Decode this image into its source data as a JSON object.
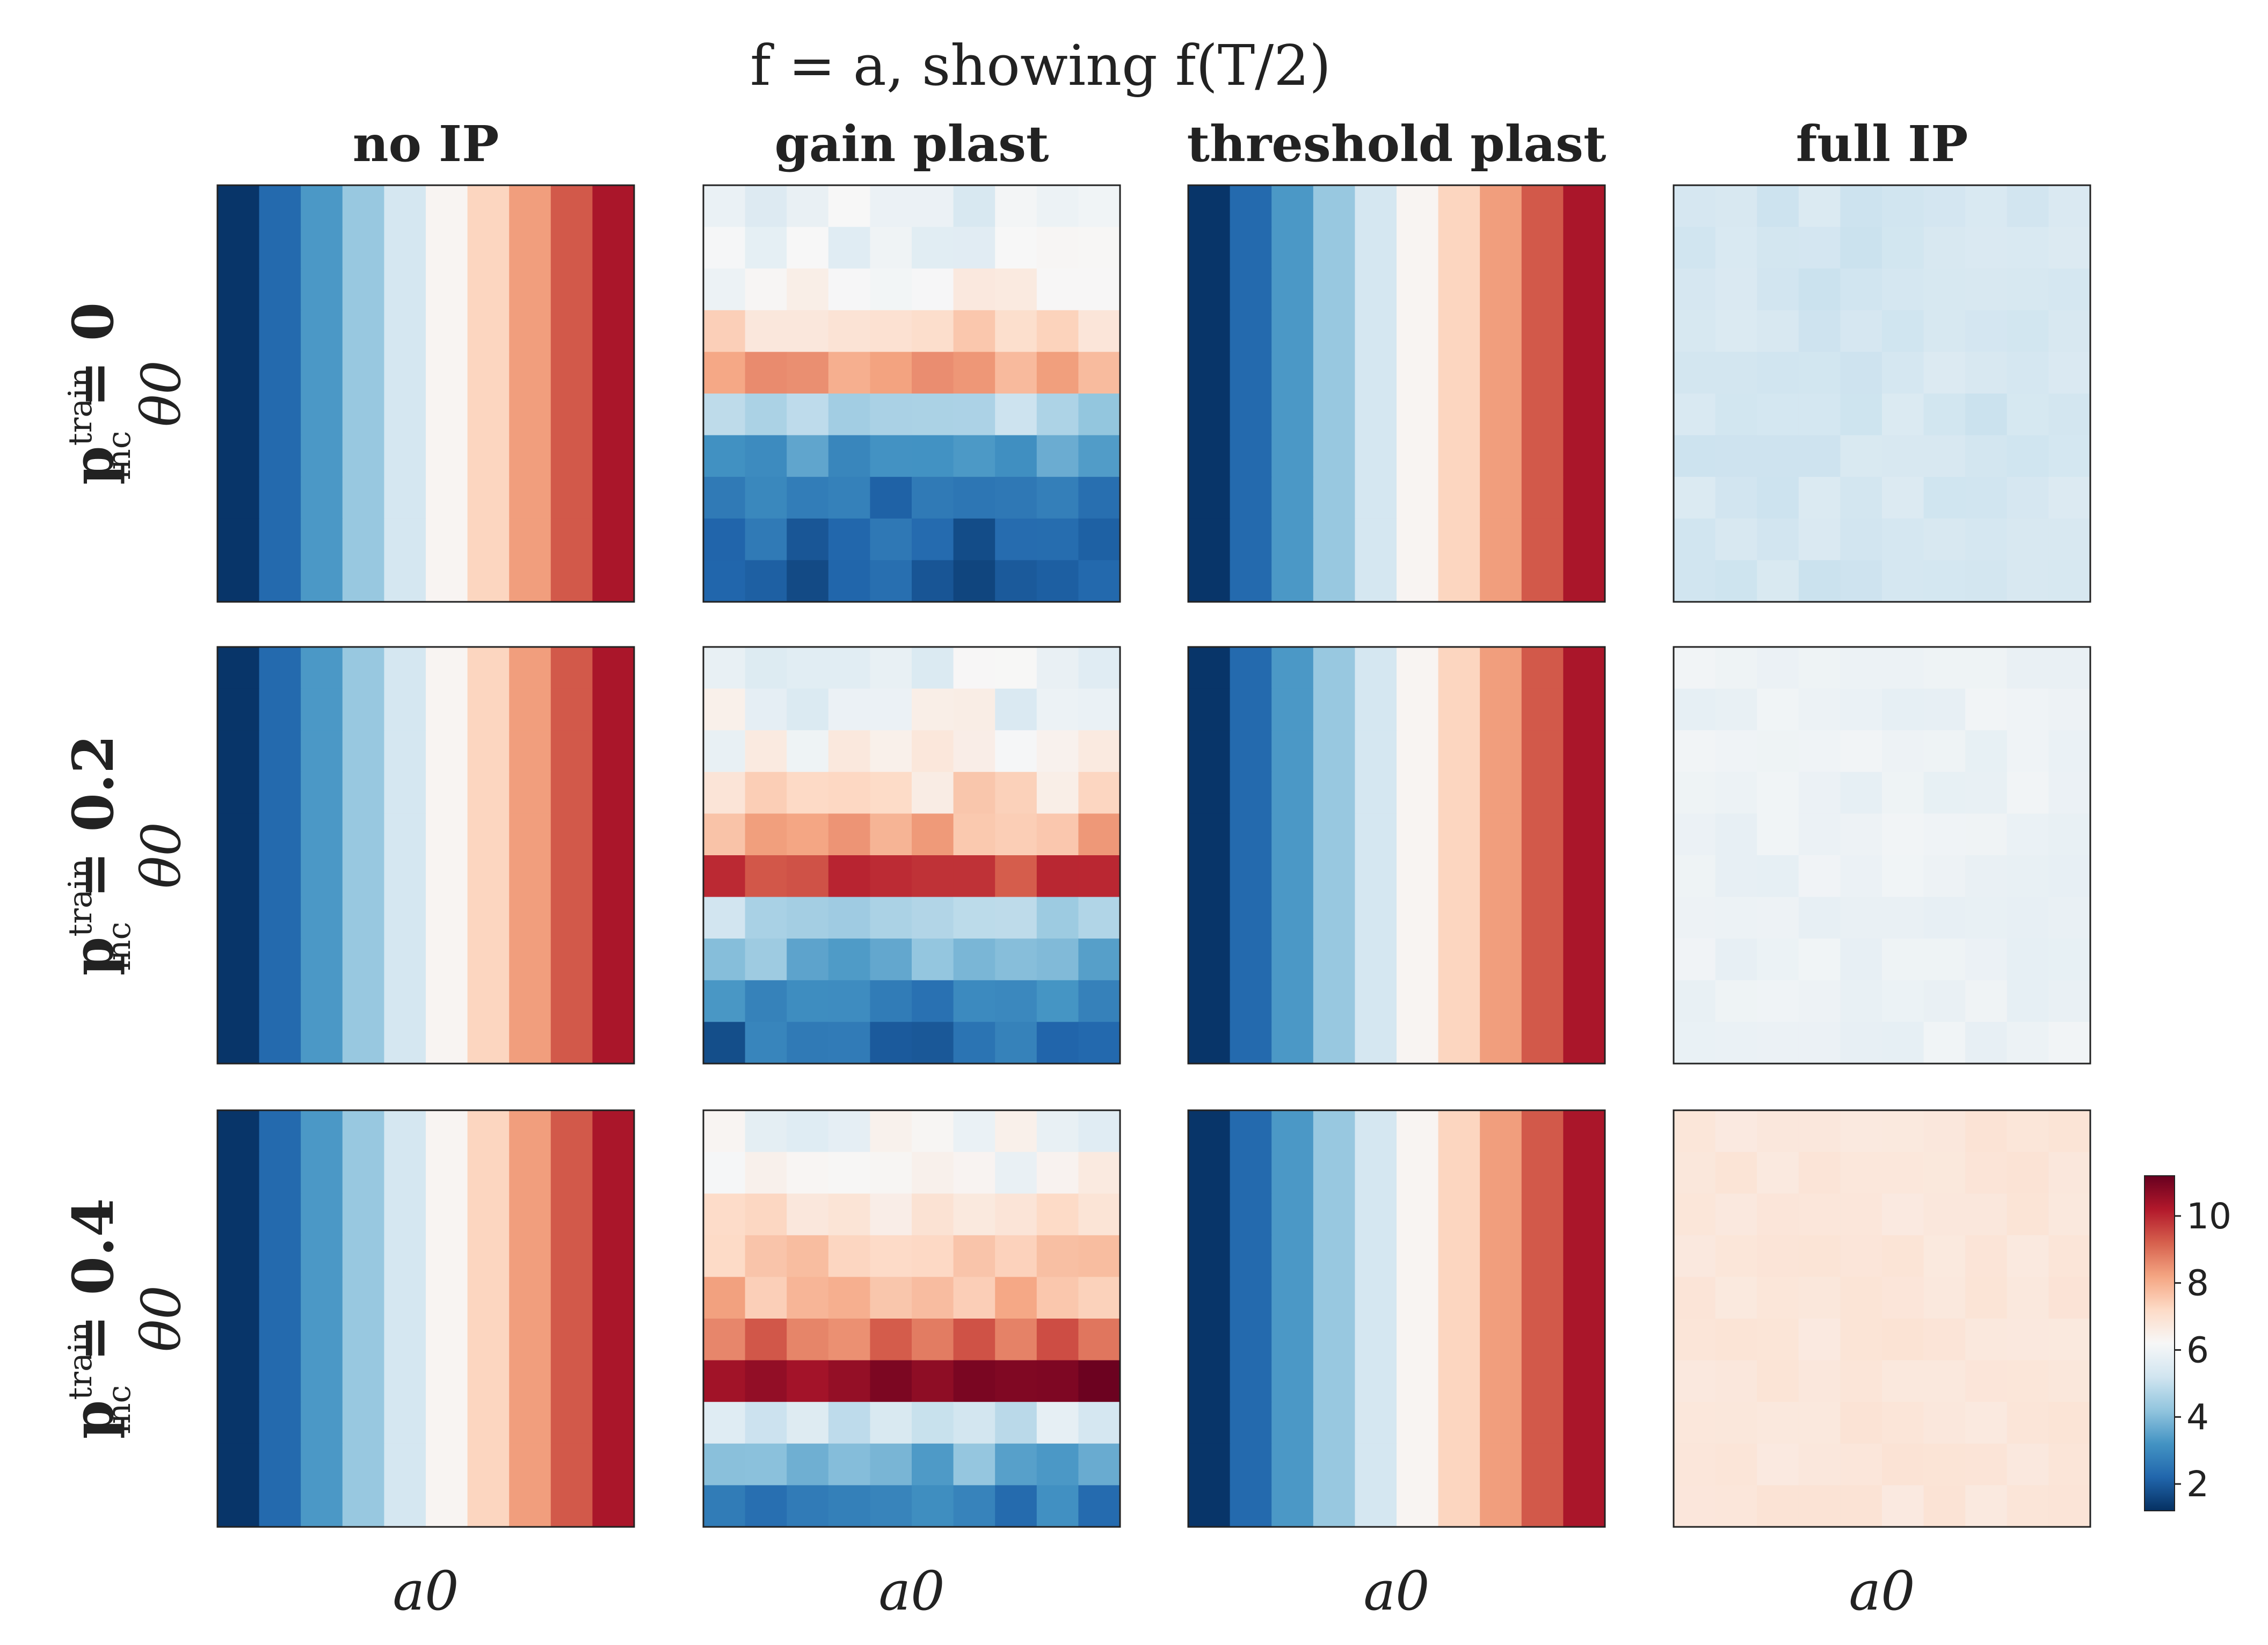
{
  "chart_data": {
    "type": "heatmap",
    "title": "f = a, showing f(T/2)",
    "columns": [
      "no IP",
      "gain plast",
      "threshold plast",
      "full IP"
    ],
    "rows": [
      {
        "label": "p_inc^train = 0",
        "value": "0"
      },
      {
        "label": "p_inc^train = 0.2",
        "value": "0.2"
      },
      {
        "label": "p_inc^train = 0.4",
        "value": "0.4"
      }
    ],
    "row_label_prefix": "p",
    "row_label_sub": "inc",
    "row_label_sup": "train",
    "xlabel": "a0",
    "ylabel": "θ0",
    "grid_size": [
      10,
      10
    ],
    "colormap": "RdBu_r",
    "vmin": 1.2,
    "vmax": 11.2,
    "colorbar_ticks": [
      2,
      4,
      6,
      8,
      10
    ],
    "panels": [
      [
        {
          "kind": "vertical",
          "values": [
            1.3,
            2.3,
            3.3,
            4.3,
            5.3,
            6.3,
            7.3,
            8.3,
            9.3,
            10.3
          ]
        },
        {
          "kind": "horizontal",
          "values": [
            5.7,
            5.9,
            6.3,
            7.1,
            8.2,
            4.7,
            3.4,
            2.6,
            2.2,
            1.9
          ],
          "noise": 0.5
        },
        {
          "kind": "vertical",
          "values": [
            1.3,
            2.3,
            3.3,
            4.3,
            5.3,
            6.3,
            7.3,
            8.3,
            9.3,
            10.3
          ]
        },
        {
          "kind": "uniform",
          "value": 5.3,
          "noise": 0.2
        }
      ],
      [
        {
          "kind": "vertical",
          "values": [
            1.3,
            2.3,
            3.3,
            4.3,
            5.3,
            6.3,
            7.3,
            8.3,
            9.3,
            10.3
          ]
        },
        {
          "kind": "horizontal",
          "values": [
            5.7,
            6.0,
            6.2,
            7.1,
            7.9,
            9.6,
            4.9,
            3.9,
            2.9,
            2.3
          ],
          "noise": 0.6
        },
        {
          "kind": "vertical",
          "values": [
            1.3,
            2.3,
            3.3,
            4.3,
            5.3,
            6.3,
            7.3,
            8.3,
            9.3,
            10.3
          ]
        },
        {
          "kind": "uniform",
          "value": 5.9,
          "noise": 0.15
        }
      ],
      [
        {
          "kind": "vertical",
          "values": [
            1.3,
            2.3,
            3.3,
            4.3,
            5.3,
            6.3,
            7.3,
            8.3,
            9.3,
            10.3
          ]
        },
        {
          "kind": "horizontal",
          "values": [
            6.0,
            6.3,
            6.9,
            7.3,
            7.8,
            9.0,
            10.7,
            5.3,
            3.8,
            2.8
          ],
          "noise": 0.5
        },
        {
          "kind": "vertical",
          "values": [
            1.3,
            2.3,
            3.3,
            4.3,
            5.3,
            6.3,
            7.3,
            8.3,
            9.3,
            10.3
          ]
        },
        {
          "kind": "uniform",
          "value": 6.8,
          "noise": 0.12
        }
      ]
    ]
  }
}
